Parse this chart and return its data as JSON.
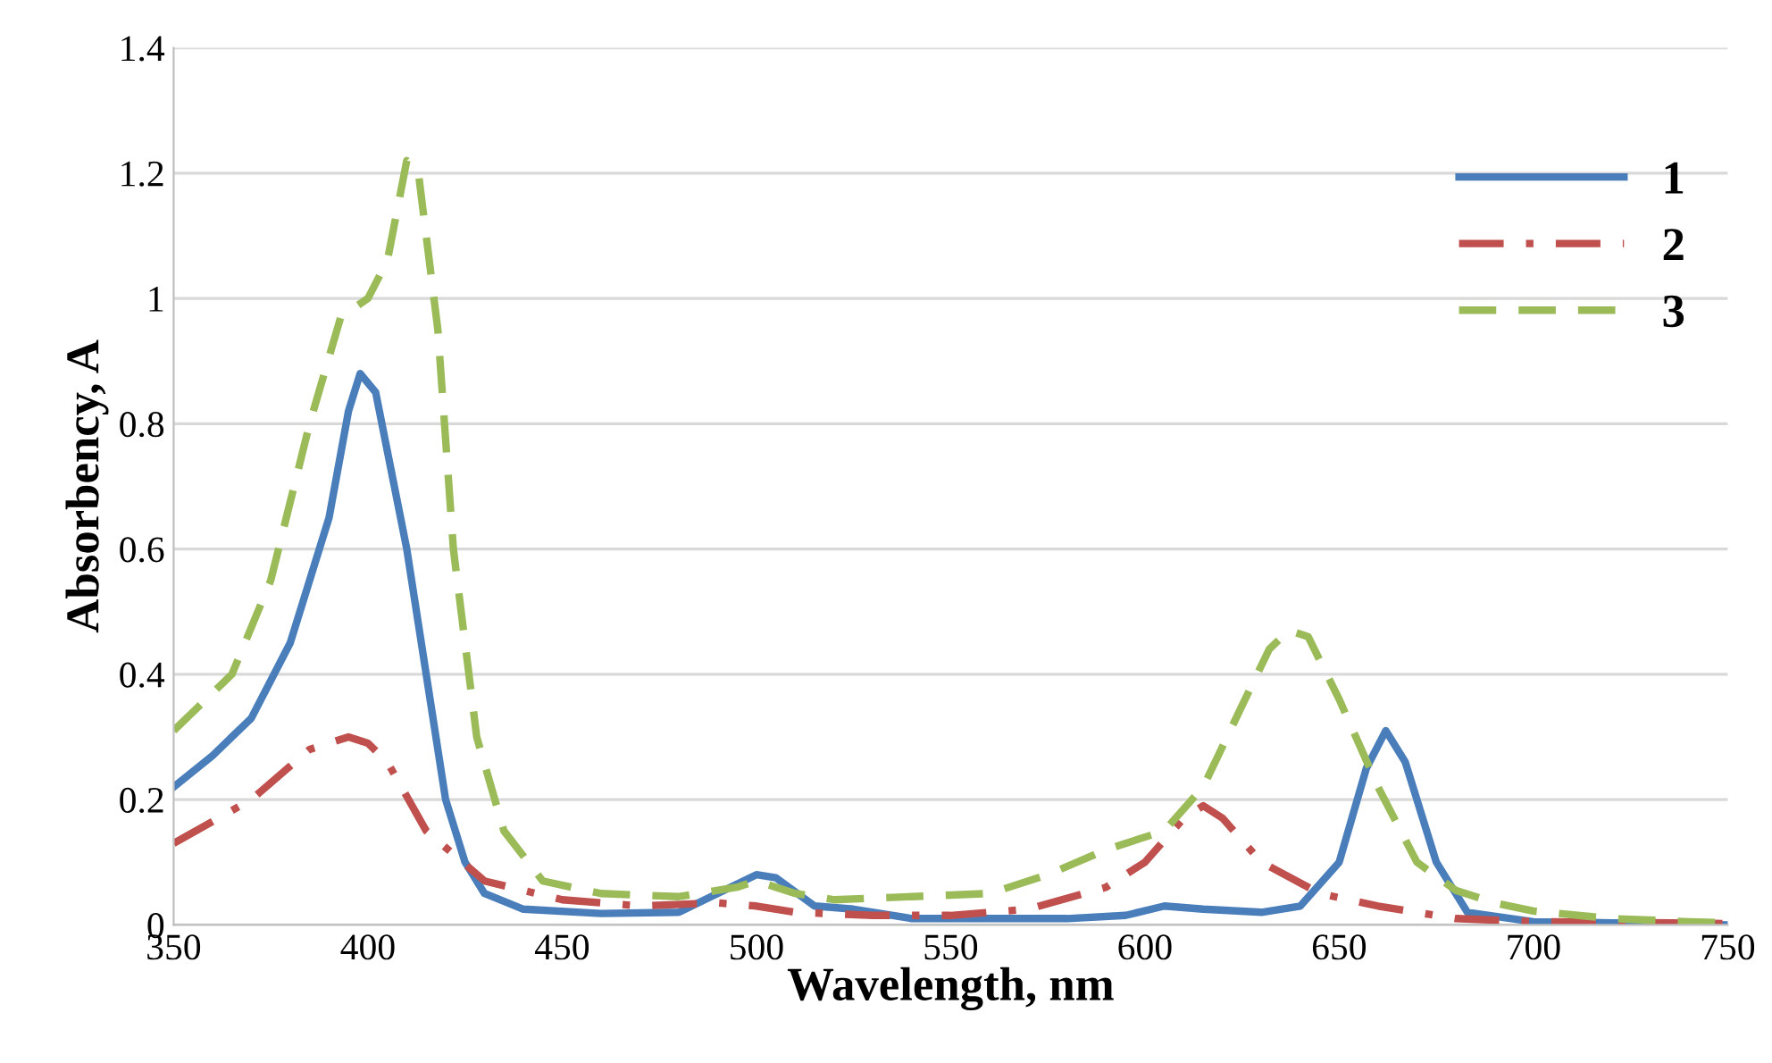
{
  "chart_data": {
    "type": "line",
    "xlabel": "Wavelength, nm",
    "ylabel": "Absorbency, A",
    "xlim": [
      350,
      750
    ],
    "xticks": [
      350,
      400,
      450,
      500,
      550,
      600,
      650,
      700,
      750
    ],
    "ylim": [
      0,
      1.4
    ],
    "yticks": [
      0,
      0.2,
      0.4,
      0.6,
      0.8,
      1,
      1.2,
      1.4
    ],
    "grid": "y",
    "legend": "top right",
    "marker": "none",
    "series": [
      {
        "name": "1",
        "color": "#4a7ebb",
        "line_style": "solid",
        "x": [
          350,
          360,
          370,
          380,
          390,
          395,
          398,
          402,
          410,
          415,
          420,
          425,
          430,
          440,
          460,
          480,
          490,
          500,
          505,
          515,
          525,
          540,
          560,
          580,
          595,
          605,
          615,
          630,
          640,
          650,
          657,
          662,
          667,
          675,
          683,
          700,
          750
        ],
        "values": [
          0.22,
          0.27,
          0.33,
          0.45,
          0.65,
          0.82,
          0.88,
          0.85,
          0.6,
          0.4,
          0.2,
          0.1,
          0.05,
          0.025,
          0.018,
          0.02,
          0.05,
          0.08,
          0.075,
          0.03,
          0.025,
          0.01,
          0.01,
          0.01,
          0.015,
          0.03,
          0.025,
          0.02,
          0.03,
          0.1,
          0.25,
          0.31,
          0.26,
          0.1,
          0.02,
          0.005,
          0.0
        ]
      },
      {
        "name": "2",
        "color": "#c0504d",
        "line_style": "dashdot",
        "x": [
          350,
          370,
          385,
          395,
          400,
          405,
          415,
          430,
          450,
          470,
          490,
          500,
          510,
          530,
          550,
          570,
          590,
          600,
          610,
          615,
          620,
          630,
          645,
          660,
          680,
          700,
          750
        ],
        "values": [
          0.13,
          0.2,
          0.28,
          0.3,
          0.29,
          0.26,
          0.15,
          0.07,
          0.04,
          0.03,
          0.035,
          0.03,
          0.02,
          0.015,
          0.015,
          0.025,
          0.06,
          0.1,
          0.17,
          0.19,
          0.17,
          0.1,
          0.05,
          0.03,
          0.01,
          0.005,
          0.002
        ]
      },
      {
        "name": "3",
        "color": "#9bbb59",
        "line_style": "dashed",
        "x": [
          350,
          365,
          375,
          385,
          393,
          400,
          405,
          410,
          413,
          418,
          422,
          428,
          435,
          445,
          460,
          480,
          495,
          500,
          510,
          520,
          540,
          560,
          575,
          590,
          605,
          615,
          625,
          632,
          637,
          642,
          650,
          660,
          670,
          680,
          690,
          700,
          720,
          740,
          750
        ],
        "values": [
          0.31,
          0.4,
          0.55,
          0.8,
          0.97,
          1.0,
          1.06,
          1.22,
          1.2,
          0.95,
          0.6,
          0.3,
          0.15,
          0.07,
          0.05,
          0.045,
          0.06,
          0.07,
          0.05,
          0.04,
          0.045,
          0.05,
          0.08,
          0.12,
          0.15,
          0.22,
          0.35,
          0.44,
          0.47,
          0.46,
          0.36,
          0.22,
          0.1,
          0.055,
          0.035,
          0.022,
          0.01,
          0.005,
          0.003
        ]
      }
    ]
  }
}
